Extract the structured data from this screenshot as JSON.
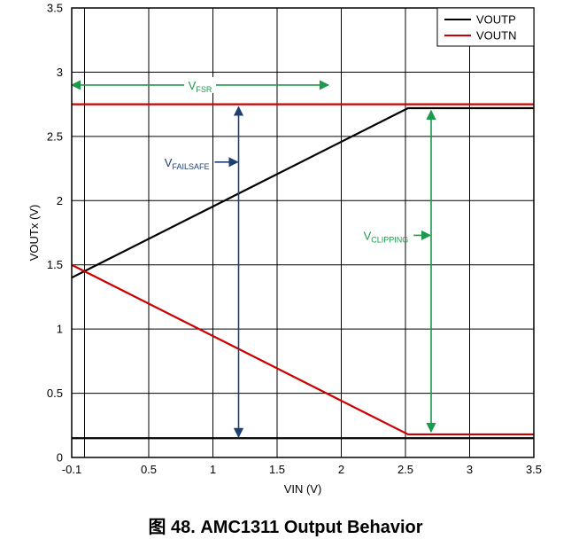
{
  "chart_data": {
    "type": "line",
    "xlabel": "VIN (V)",
    "ylabel": "VOUTx (V)",
    "xlim": [
      -0.1,
      3.5
    ],
    "ylim": [
      0,
      3.5
    ],
    "x_ticks": [
      -0.1,
      0.5,
      1,
      1.5,
      2,
      2.5,
      3,
      3.5
    ],
    "x_tick_labels": [
      "-0.1",
      "0.5",
      "1",
      "1.5",
      "2",
      "2.5",
      "3",
      "3.5"
    ],
    "y_ticks": [
      0,
      0.5,
      1,
      1.5,
      2,
      2.5,
      3,
      3.5
    ],
    "y_tick_labels": [
      "0",
      "0.5",
      "1",
      "1.5",
      "2",
      "2.5",
      "3",
      "3.5"
    ],
    "x_grid": [
      -0.1,
      0,
      0.5,
      1,
      1.5,
      2,
      2.5,
      3
    ],
    "grid": true,
    "legend_position": "top-right",
    "series": [
      {
        "name": "VOUTP",
        "color": "#000000",
        "points": [
          [
            -0.1,
            1.4
          ],
          [
            2.52,
            2.72
          ],
          [
            3.5,
            2.72
          ]
        ]
      },
      {
        "name": "VOUTN",
        "color": "#cc0000",
        "points": [
          [
            -0.1,
            1.5
          ],
          [
            2.52,
            0.18
          ],
          [
            3.5,
            0.18
          ]
        ]
      }
    ],
    "reference_lines": [
      {
        "y": 2.75,
        "color": "#cc0000"
      },
      {
        "y": 0.15,
        "color": "#000000"
      }
    ],
    "annotations": [
      {
        "label": "V",
        "subscript": "FSR",
        "color": "#1a9a4a",
        "arrow": {
          "from": [
            -0.1,
            2.9
          ],
          "to": [
            1.9,
            2.9
          ],
          "double": true
        }
      },
      {
        "label": "V",
        "subscript": "FAILSAFE",
        "color": "#1f3f73",
        "arrow": {
          "from": [
            1.2,
            2.73
          ],
          "to": [
            1.2,
            0.16
          ],
          "double": true
        },
        "pointer": {
          "from": [
            1.0,
            2.3
          ],
          "to": [
            1.2,
            2.3
          ]
        }
      },
      {
        "label": "V",
        "subscript": "CLIPPING",
        "color": "#1a9a4a",
        "arrow": {
          "from": [
            2.7,
            2.7
          ],
          "to": [
            2.7,
            0.2
          ],
          "double": true
        },
        "pointer": {
          "from": [
            2.55,
            1.73
          ],
          "to": [
            2.7,
            1.73
          ]
        }
      }
    ]
  },
  "caption": "图 48.  AMC1311 Output Behavior"
}
